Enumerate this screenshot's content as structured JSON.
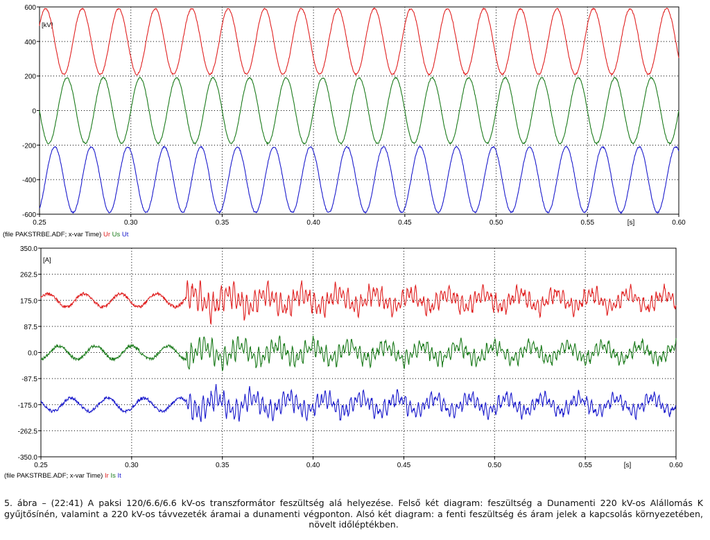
{
  "chart_data": [
    {
      "type": "line",
      "ylabel": "[kV]",
      "xlabel": "[s]",
      "xlim": [
        0.25,
        0.6
      ],
      "ylim": [
        -600,
        600
      ],
      "xticks": [
        "0.25",
        "0.30",
        "0.35",
        "0.40",
        "0.45",
        "0.50",
        "0.55",
        "0.60"
      ],
      "yticks": [
        "600",
        "400",
        "200",
        "0",
        "-200",
        "-400",
        "-600"
      ],
      "grid": true,
      "legend_prefix": "(file PAKSTRBE.ADF; x-var Time)",
      "series": [
        {
          "name": "Ur",
          "color": "#e02020",
          "offset": 400,
          "amplitude": 190,
          "frequency_hz": 50,
          "phase_deg": 210,
          "noise": 4,
          "transient": 0
        },
        {
          "name": "Us",
          "color": "#1a7a1a",
          "offset": 0,
          "amplitude": 190,
          "frequency_hz": 50,
          "phase_deg": 0,
          "noise": 4,
          "transient": 0
        },
        {
          "name": "Ut",
          "color": "#1a1acc",
          "offset": -400,
          "amplitude": 190,
          "frequency_hz": 50,
          "phase_deg": 120,
          "noise": 4,
          "transient": 0
        }
      ]
    },
    {
      "type": "line",
      "ylabel": "[A]",
      "xlabel": "[s]",
      "xlim": [
        0.25,
        0.6
      ],
      "ylim": [
        -350,
        350
      ],
      "xticks": [
        "0.25",
        "0.30",
        "0.35",
        "0.40",
        "0.45",
        "0.50",
        "0.55",
        "0.60"
      ],
      "yticks": [
        "350.0",
        "262.5",
        "175.0",
        "87.5",
        "0.0",
        "-87.5",
        "-175.0",
        "-262.5",
        "-350.0"
      ],
      "grid": true,
      "legend_prefix": "(file PAKSTRBE.ADF; x-var Time)",
      "switching_time": 0.33,
      "series": [
        {
          "name": "Ir",
          "color": "#e02020",
          "offset": 175,
          "amplitude": 22,
          "frequency_hz": 50,
          "phase_deg": 200,
          "noise": 5,
          "transient": 55
        },
        {
          "name": "Is",
          "color": "#1a7a1a",
          "offset": 0,
          "amplitude": 22,
          "frequency_hz": 50,
          "phase_deg": 90,
          "noise": 5,
          "transient": 45
        },
        {
          "name": "It",
          "color": "#1a1acc",
          "offset": -175,
          "amplitude": 22,
          "frequency_hz": 50,
          "phase_deg": 330,
          "noise": 5,
          "transient": 45
        }
      ]
    }
  ],
  "caption": "5. ábra – (22:41) A paksi 120/6.6/6.6 kV-os transzformátor feszültség alá helyezése. Felső két diagram: feszültség a Dunamenti 220 kV-os Alállomás K gyűjtősínén, valamint a 220 kV-os távvezeték áramai a dunamenti végponton. Alsó két diagram: a fenti feszültség és áram jelek a kapcsolás környezetében, növelt időléptékben."
}
